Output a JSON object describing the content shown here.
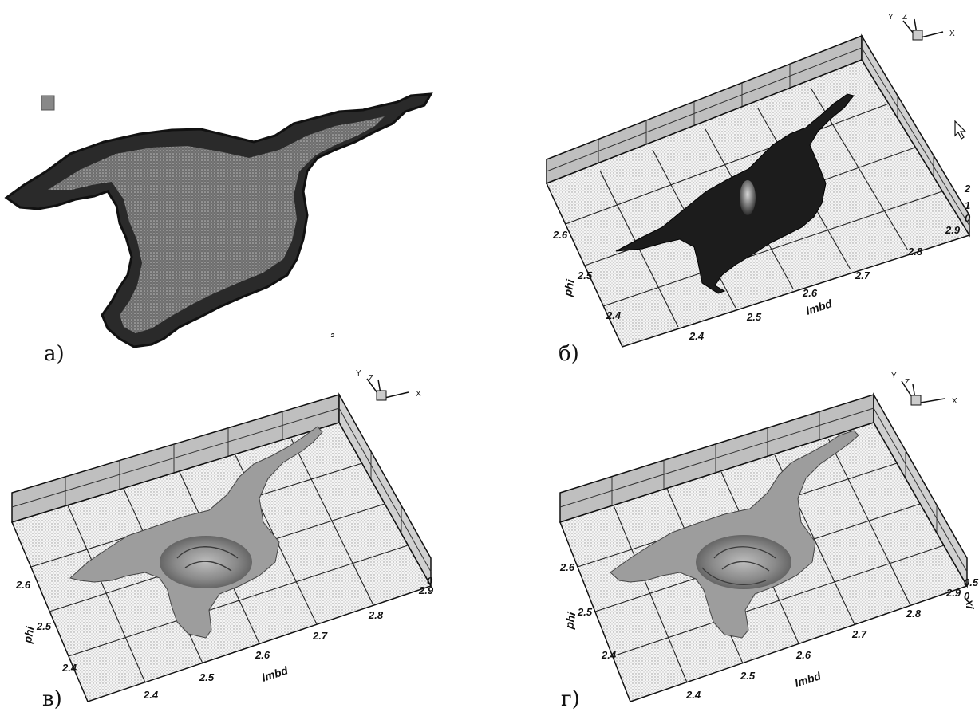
{
  "panels": [
    {
      "id": "a",
      "label": "а)",
      "stray_mark": "ᵓ"
    },
    {
      "id": "b",
      "label": "б)",
      "phi_ticks": [
        "2.6",
        "2.5",
        "2.4"
      ],
      "lmbd_ticks": [
        "2.4",
        "2.5",
        "2.6",
        "2.7",
        "2.8",
        "2.9"
      ],
      "z_ticks": [
        "2",
        "1",
        "0"
      ],
      "xlabel": "lmbd",
      "ylabel": "phi",
      "triad": {
        "x": "X",
        "y": "Y",
        "z": "Z"
      }
    },
    {
      "id": "c",
      "label": "в)",
      "phi_ticks": [
        "2.6",
        "2.5",
        "2.4"
      ],
      "lmbd_ticks": [
        "2.4",
        "2.5",
        "2.6",
        "2.7",
        "2.8",
        "2.9"
      ],
      "z_ticks": [
        "0"
      ],
      "xlabel": "lmbd",
      "ylabel": "phi",
      "triad": {
        "x": "X",
        "y": "Y",
        "z": "Z"
      }
    },
    {
      "id": "d",
      "label": "г)",
      "phi_ticks": [
        "2.6",
        "2.5",
        "2.4"
      ],
      "lmbd_ticks": [
        "2.4",
        "2.5",
        "2.6",
        "2.7",
        "2.8",
        "2.9"
      ],
      "z_ticks": [
        "0.5",
        "0"
      ],
      "z_axis_label": "xi",
      "xlabel": "lmbd",
      "ylabel": "phi",
      "triad": {
        "x": "X",
        "y": "Y",
        "z": "Z"
      }
    }
  ]
}
